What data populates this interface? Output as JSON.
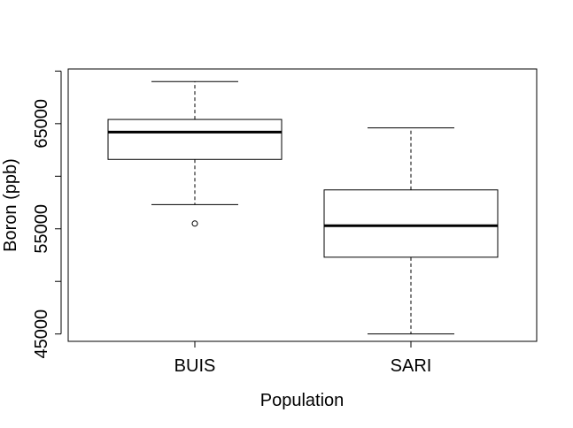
{
  "chart_data": {
    "type": "boxplot",
    "title": "",
    "xlabel": "Population",
    "ylabel": "Boron (ppb)",
    "ylim": [
      44300,
      70200
    ],
    "yticks": [
      45000,
      50000,
      55000,
      60000,
      65000,
      70000
    ],
    "ytick_labels": [
      "45000",
      "",
      "55000",
      "",
      "65000",
      ""
    ],
    "grid": false,
    "categories": [
      "BUIS",
      "SARI"
    ],
    "boxes": [
      {
        "category": "BUIS",
        "whisker_low": 57300,
        "q1": 61600,
        "median": 64200,
        "q3": 65400,
        "whisker_high": 69000,
        "outliers": [
          55500
        ]
      },
      {
        "category": "SARI",
        "whisker_low": 45000,
        "q1": 52300,
        "median": 55300,
        "q3": 58700,
        "whisker_high": 64600,
        "outliers": []
      }
    ]
  }
}
